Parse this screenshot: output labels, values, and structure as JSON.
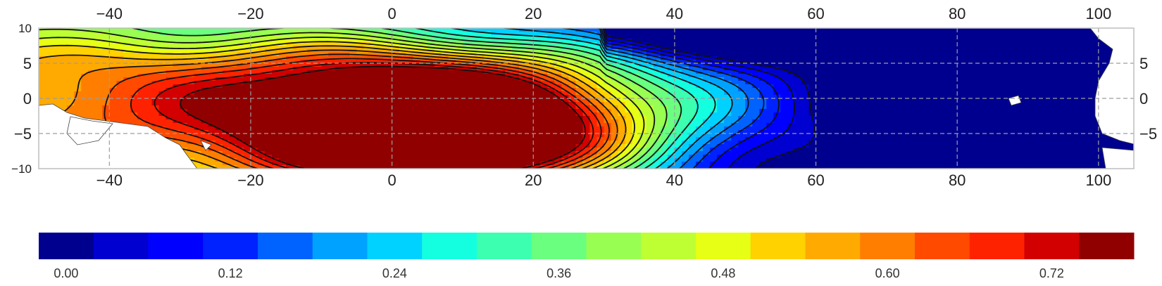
{
  "chart_data": {
    "type": "heatmap",
    "subtype": "filled-contour map",
    "title": "",
    "xlabel": "",
    "ylabel": "",
    "xlim": [
      -50,
      105
    ],
    "ylim": [
      -10,
      10
    ],
    "x_ticks_top": [
      "−40",
      "−20",
      "0",
      "20",
      "40",
      "60",
      "80",
      "100"
    ],
    "x_ticks_bottom": [
      "−40",
      "−20",
      "0",
      "20",
      "40",
      "60",
      "80",
      "100"
    ],
    "x_tick_values": [
      -40,
      -20,
      0,
      20,
      40,
      60,
      80,
      100
    ],
    "y_ticks_left": [
      "10",
      "5",
      "0",
      "−5",
      "−10"
    ],
    "y_tick_values_left": [
      10,
      5,
      0,
      -5,
      -10
    ],
    "y_ticks_right": [
      "5",
      "0",
      "−5"
    ],
    "y_tick_values_right": [
      5,
      0,
      -5
    ],
    "grid": true,
    "colormap": "jet",
    "colorbar": {
      "orientation": "horizontal",
      "levels": [
        0.0,
        0.04,
        0.08,
        0.12,
        0.16,
        0.2,
        0.24,
        0.28,
        0.32,
        0.36,
        0.4,
        0.44,
        0.48,
        0.52,
        0.56,
        0.6,
        0.64,
        0.68,
        0.72,
        0.76
      ],
      "colors": [
        "#00008f",
        "#0000d0",
        "#0000ff",
        "#0022ff",
        "#0062ff",
        "#00a2ff",
        "#00d2ff",
        "#14ffe0",
        "#3cffb0",
        "#6aff7e",
        "#98ff52",
        "#beff34",
        "#e6ff14",
        "#ffd200",
        "#ffaa00",
        "#ff7e00",
        "#ff4a00",
        "#ff2200",
        "#d20000",
        "#900000"
      ],
      "tick_labels": [
        "0.00",
        "0.12",
        "0.24",
        "0.36",
        "0.48",
        "0.60",
        "0.72"
      ],
      "tick_values": [
        0.0,
        0.12,
        0.24,
        0.36,
        0.48,
        0.6,
        0.72
      ]
    },
    "field_description_values": {
      "x_at_max": 10,
      "y_at_max": -7,
      "max_value": 0.74,
      "min_value": 0.02,
      "x_at_min": 100,
      "y_at_min": 9
    }
  }
}
